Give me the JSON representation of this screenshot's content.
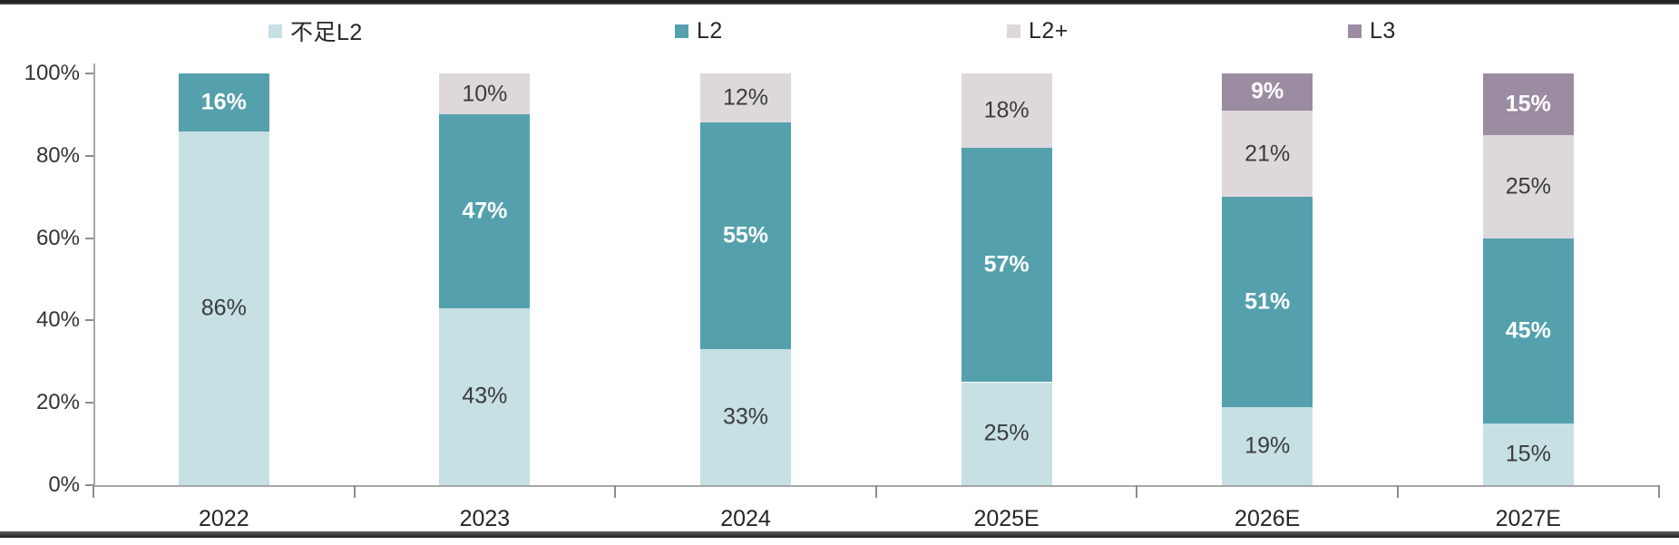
{
  "legend": [
    {
      "label": "不足L2",
      "color": "#c6e0e4"
    },
    {
      "label": "L2",
      "color": "#54a1ad"
    },
    {
      "label": "L2+",
      "color": "#dcd8dc"
    },
    {
      "label": "L3",
      "color": "#9b8ca2"
    }
  ],
  "chart_data": {
    "type": "bar",
    "stacked": true,
    "percent_stacked": true,
    "title": "",
    "xlabel": "",
    "ylabel": "",
    "unit": "%",
    "categories": [
      "2022",
      "2023",
      "2024",
      "2025E",
      "2026E",
      "2027E"
    ],
    "series": [
      {
        "name": "不足L2",
        "color": "#c6e0e4",
        "label_color": "#3b3b3b",
        "label_bold": false,
        "values": [
          86,
          43,
          33,
          25,
          19,
          15
        ]
      },
      {
        "name": "L2",
        "color": "#54a1ad",
        "label_color": "#ffffff",
        "label_bold": true,
        "values": [
          16,
          47,
          55,
          57,
          51,
          45
        ]
      },
      {
        "name": "L2+",
        "color": "#dcd8dc",
        "label_color": "#3b3b3b",
        "label_bold": false,
        "values": [
          null,
          10,
          12,
          18,
          21,
          25
        ]
      },
      {
        "name": "L3",
        "color": "#9b8ca2",
        "label_color": "#ffffff",
        "label_bold": true,
        "values": [
          null,
          null,
          null,
          null,
          9,
          15
        ]
      }
    ],
    "data_labels": true,
    "label_format": "{value}%",
    "ylim": [
      0,
      100
    ],
    "y_ticks": [
      "0%",
      "20%",
      "40%",
      "60%",
      "80%",
      "100%"
    ],
    "grid": false,
    "legend_position": "top"
  }
}
